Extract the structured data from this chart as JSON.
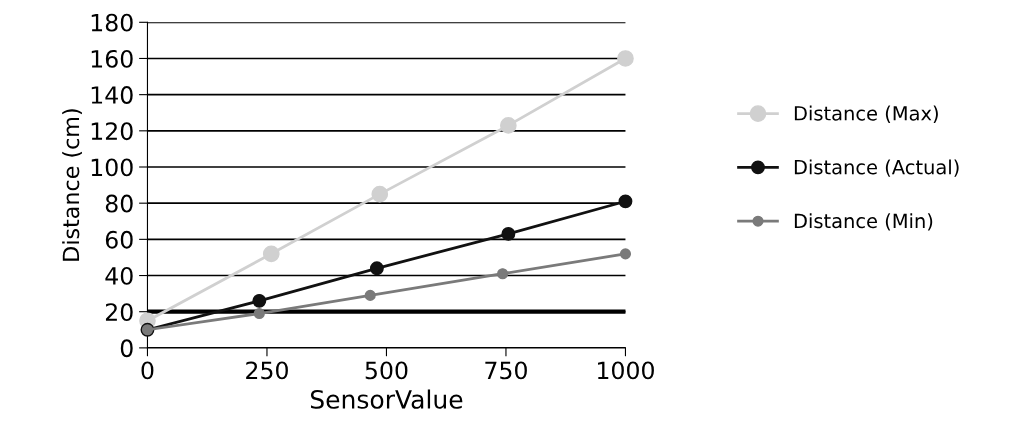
{
  "chart_data": {
    "type": "line",
    "xlabel": "SensorValue",
    "ylabel": "Distance (cm)",
    "xlim": [
      0,
      1000
    ],
    "xticks": [
      0,
      250,
      500,
      750,
      1000
    ],
    "ylim": [
      0,
      180
    ],
    "yticks": [
      0,
      20,
      40,
      60,
      80,
      100,
      120,
      140,
      160,
      180
    ],
    "grid": "y",
    "legend": "right",
    "marker": "circle",
    "line_style": "solid",
    "ref_lines": [
      {
        "axis": "y",
        "value": 20,
        "color": "#000000"
      }
    ],
    "series": [
      {
        "name": "Distance (Max)",
        "color": "#d0d0d0",
        "x": [
          0,
          259,
          486,
          755,
          1000
        ],
        "values": [
          15,
          52,
          85,
          123,
          160
        ]
      },
      {
        "name": "Distance (Actual)",
        "color": "#111111",
        "x": [
          0,
          234,
          480,
          755,
          1000
        ],
        "values": [
          10,
          26,
          44,
          63,
          81
        ]
      },
      {
        "name": "Distance (Min)",
        "color": "#7a7a7a",
        "x": [
          0,
          234,
          466,
          743,
          1000
        ],
        "values": [
          10,
          19,
          29,
          41,
          52
        ]
      }
    ]
  }
}
